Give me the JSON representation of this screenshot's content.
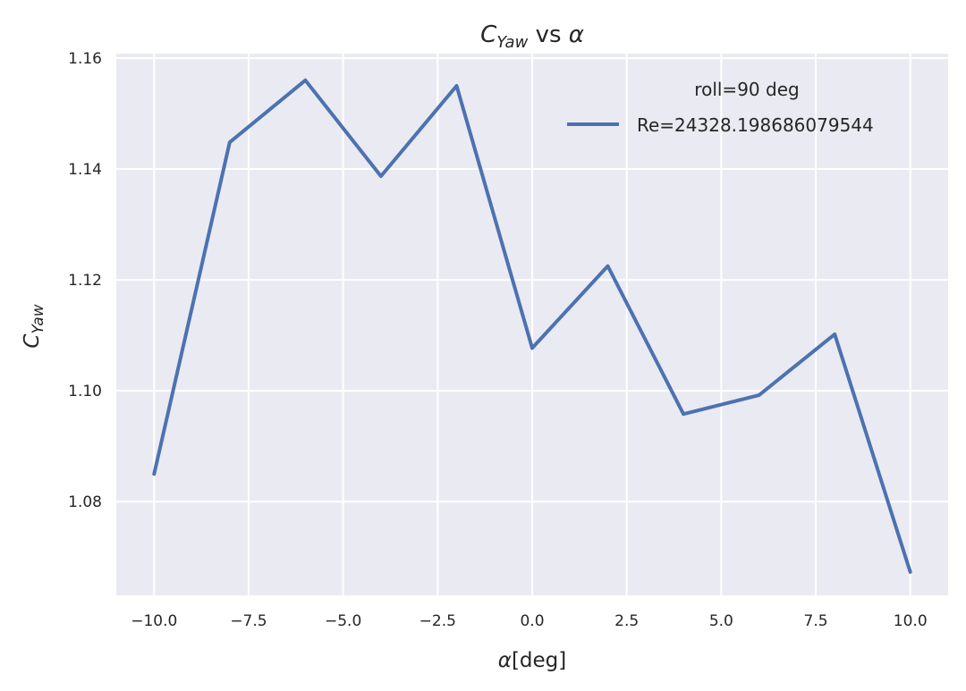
{
  "chart_data": {
    "type": "line",
    "title": {
      "main": "C",
      "sub": "Yaw",
      "rest": " vs ",
      "symbol": "α"
    },
    "xlabel": {
      "symbol": "α",
      "rest": "[deg]"
    },
    "ylabel": {
      "main": "C",
      "sub": "Yaw"
    },
    "xlim": [
      -11.0,
      11.0
    ],
    "ylim": [
      1.0631,
      1.1608
    ],
    "x_ticks": [
      -10.0,
      -7.5,
      -5.0,
      -2.5,
      0.0,
      2.5,
      5.0,
      7.5,
      10.0
    ],
    "x_tick_labels": [
      "−10.0",
      "−7.5",
      "−5.0",
      "−2.5",
      "0.0",
      "2.5",
      "5.0",
      "7.5",
      "10.0"
    ],
    "y_ticks": [
      1.08,
      1.1,
      1.12,
      1.14,
      1.16
    ],
    "y_tick_labels": [
      "1.08",
      "1.10",
      "1.12",
      "1.14",
      "1.16"
    ],
    "grid": true,
    "legend": {
      "title": "roll=90 deg",
      "position": "top-right"
    },
    "series": [
      {
        "name": "Re=24328.198686079544",
        "color": "#4c72b0",
        "x": [
          -10,
          -8,
          -6,
          -4,
          -2,
          0,
          2,
          4,
          6,
          8,
          10
        ],
        "y": [
          1.085,
          1.1448,
          1.156,
          1.1387,
          1.155,
          1.1077,
          1.1225,
          1.0958,
          1.0992,
          1.1102,
          1.0673
        ]
      }
    ],
    "colors": {
      "background": "#eaeaf2",
      "grid": "#ffffff",
      "line": "#4c72b0"
    }
  }
}
